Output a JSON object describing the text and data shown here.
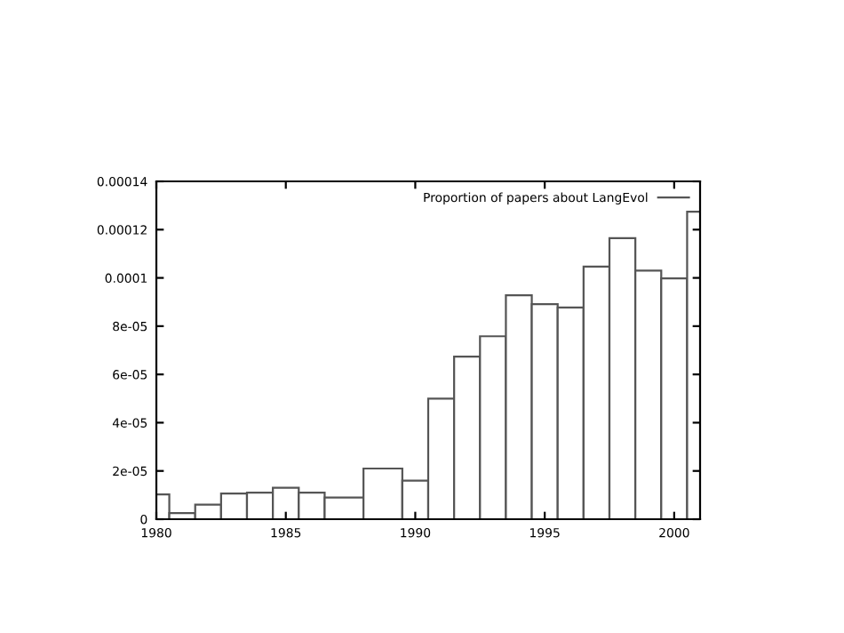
{
  "chart_data": {
    "type": "histogram",
    "bins": [
      1979.5,
      1980.5,
      1981.5,
      1982.5,
      1983.5,
      1984.5,
      1985.5,
      1986.5,
      1988,
      1989.5,
      1990.5,
      1991.5,
      1992.5,
      1993.5,
      1994.5,
      1995.5,
      1996.5,
      1997.5,
      1998.5,
      1999.5,
      2000.5,
      2001.5
    ],
    "series": [
      {
        "name": "Proportion of papers about LangEvol",
        "color": "#555555",
        "values": [
          1.03e-05,
          2.5e-06,
          6e-06,
          1.06e-05,
          1.1e-05,
          1.3e-05,
          1.1e-05,
          9e-06,
          2.1e-05,
          1.6e-05,
          5e-05,
          6.74e-05,
          7.58e-05,
          9.28e-05,
          8.91e-05,
          8.77e-05,
          0.0001047,
          0.0001165,
          0.000103,
          9.98e-05,
          0.0001274
        ]
      }
    ],
    "xlim": [
      1980,
      2001
    ],
    "xticks": [
      1980,
      1985,
      1990,
      1995,
      2000
    ],
    "ylim": [
      0,
      0.00014
    ],
    "yticks": [
      0,
      {
        "value": 2e-05,
        "label": "2e-05"
      },
      {
        "value": 4e-05,
        "label": "4e-05"
      },
      {
        "value": 6e-05,
        "label": "6e-05"
      },
      {
        "value": 8e-05,
        "label": "8e-05"
      },
      0.0001,
      0.00012,
      0.00014
    ],
    "legend": "top right",
    "grid": false
  }
}
